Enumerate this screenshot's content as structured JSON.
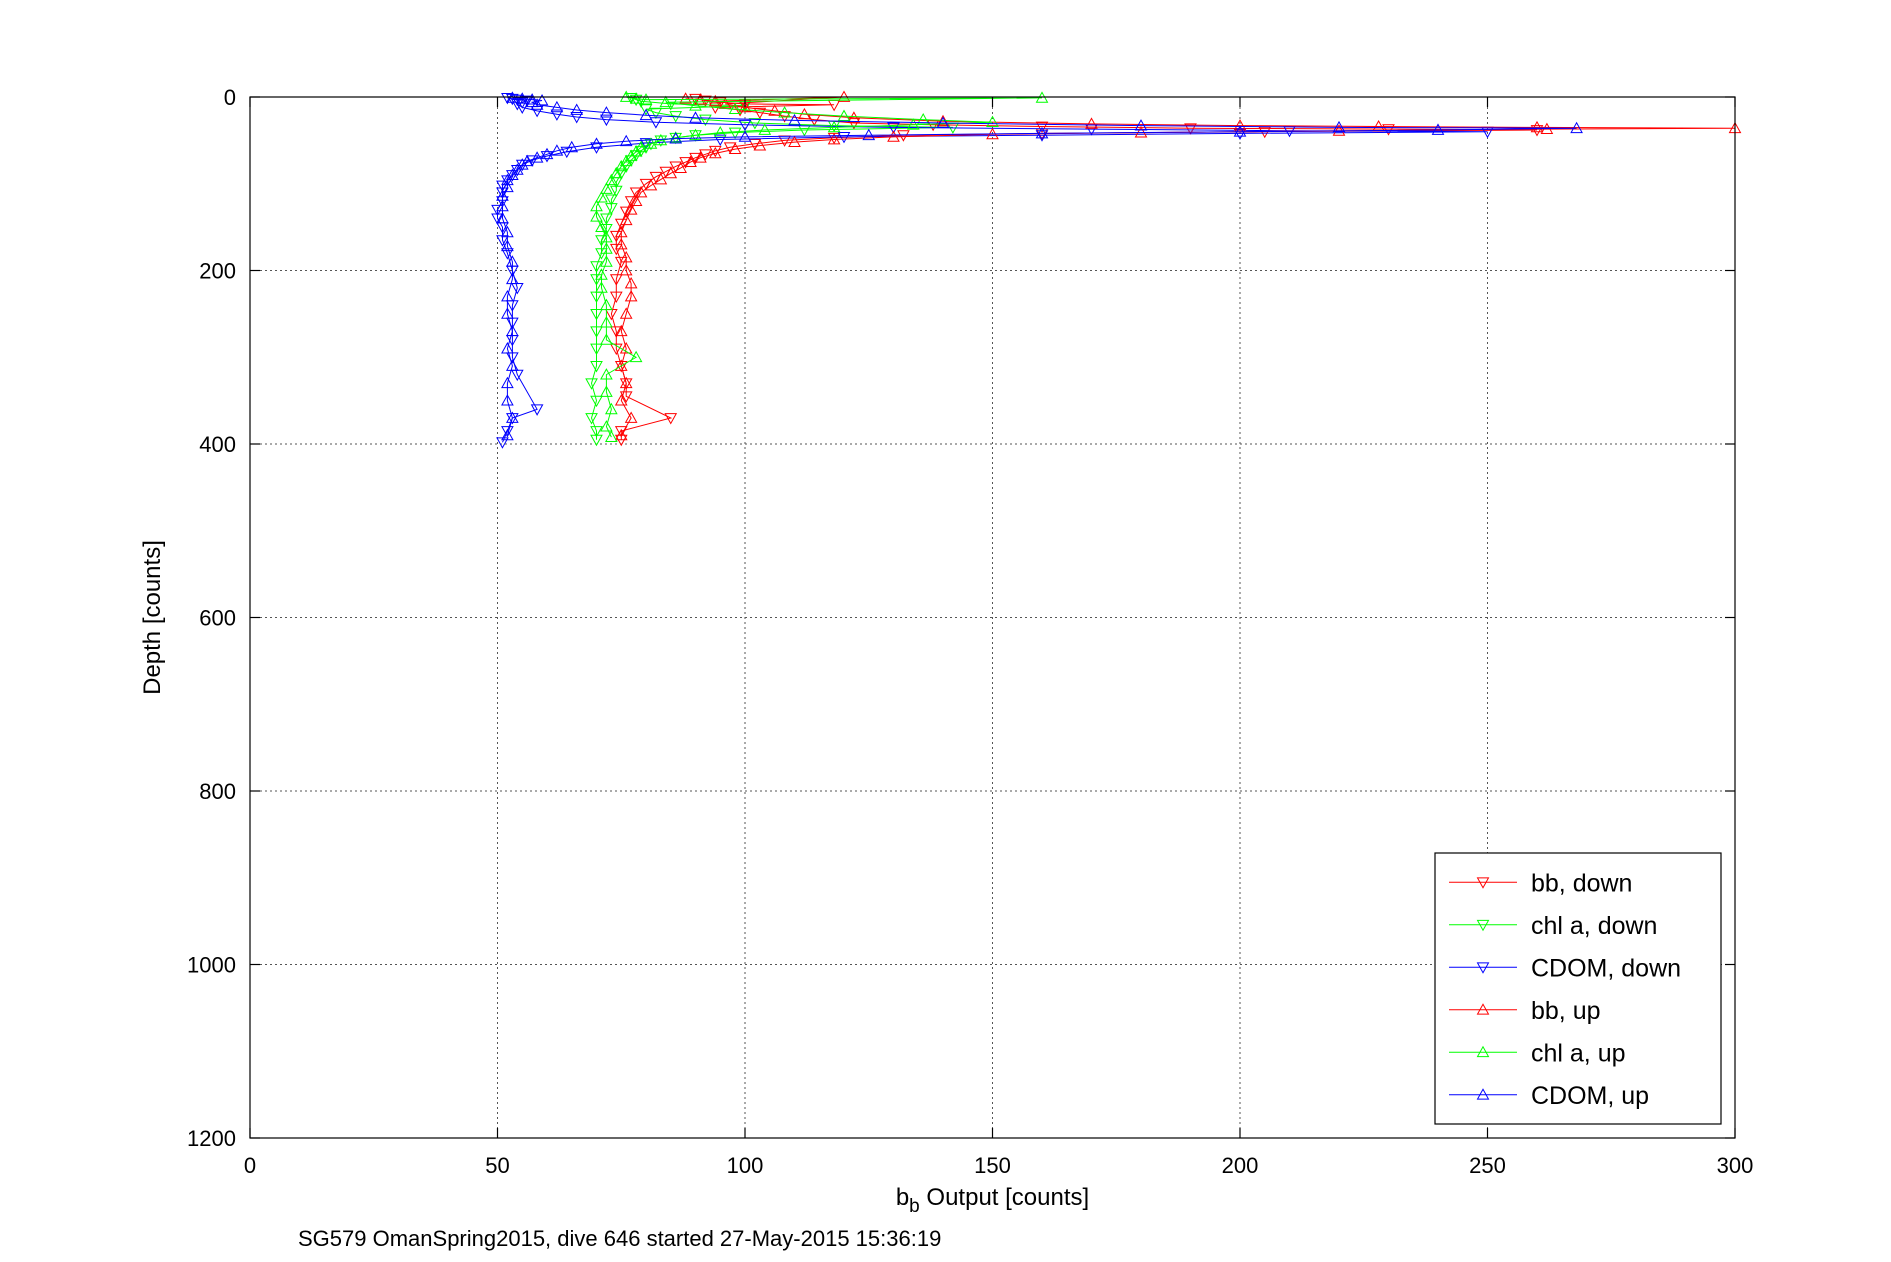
{
  "chart_data": {
    "type": "line",
    "title": "",
    "xlabel_base": "b",
    "xlabel_sub": "b",
    "xlabel_rest": " Output [counts]",
    "ylabel": "Depth [counts]",
    "caption": "SG579 OmanSpring2015, dive 646 started 27-May-2015 15:36:19",
    "xlim": [
      0,
      300
    ],
    "ylim": [
      1200,
      0
    ],
    "y_reversed": true,
    "grid": true,
    "legend_position": "bottom-right",
    "x_ticks": [
      0,
      50,
      100,
      150,
      200,
      250,
      300
    ],
    "y_ticks": [
      0,
      200,
      400,
      600,
      800,
      1000,
      1200
    ],
    "series": [
      {
        "name": "bb, down",
        "color": "#ff0000",
        "marker": "triangle-down",
        "points": [
          [
            90,
            2
          ],
          [
            92,
            4
          ],
          [
            95,
            6
          ],
          [
            100,
            8
          ],
          [
            118,
            9
          ],
          [
            94,
            12
          ],
          [
            99,
            15
          ],
          [
            103,
            18
          ],
          [
            108,
            22
          ],
          [
            114,
            26
          ],
          [
            122,
            30
          ],
          [
            138,
            32
          ],
          [
            160,
            34
          ],
          [
            190,
            36
          ],
          [
            230,
            37
          ],
          [
            260,
            38
          ],
          [
            205,
            40
          ],
          [
            160,
            42
          ],
          [
            132,
            44
          ],
          [
            118,
            47
          ],
          [
            108,
            50
          ],
          [
            102,
            54
          ],
          [
            97,
            58
          ],
          [
            94,
            62
          ],
          [
            92,
            66
          ],
          [
            90,
            70
          ],
          [
            88,
            75
          ],
          [
            86,
            80
          ],
          [
            84,
            86
          ],
          [
            82,
            92
          ],
          [
            80,
            100
          ],
          [
            78,
            110
          ],
          [
            77,
            120
          ],
          [
            76,
            132
          ],
          [
            75,
            146
          ],
          [
            74,
            160
          ],
          [
            74,
            175
          ],
          [
            75,
            190
          ],
          [
            74,
            210
          ],
          [
            74,
            230
          ],
          [
            73,
            250
          ],
          [
            74,
            270
          ],
          [
            74,
            290
          ],
          [
            75,
            310
          ],
          [
            76,
            330
          ],
          [
            76,
            345
          ],
          [
            85,
            370
          ],
          [
            75,
            385
          ],
          [
            75,
            395
          ]
        ]
      },
      {
        "name": "chl a, down",
        "color": "#00ff00",
        "marker": "triangle-down",
        "points": [
          [
            77,
            1
          ],
          [
            78,
            3
          ],
          [
            79,
            5
          ],
          [
            85,
            8
          ],
          [
            100,
            10
          ],
          [
            80,
            14
          ],
          [
            82,
            18
          ],
          [
            86,
            22
          ],
          [
            92,
            26
          ],
          [
            102,
            30
          ],
          [
            118,
            33
          ],
          [
            142,
            35
          ],
          [
            112,
            38
          ],
          [
            98,
            41
          ],
          [
            90,
            44
          ],
          [
            86,
            47
          ],
          [
            83,
            50
          ],
          [
            81,
            54
          ],
          [
            80,
            58
          ],
          [
            79,
            62
          ],
          [
            78,
            67
          ],
          [
            77,
            73
          ],
          [
            76,
            80
          ],
          [
            75,
            88
          ],
          [
            74,
            98
          ],
          [
            74,
            108
          ],
          [
            73,
            118
          ],
          [
            73,
            128
          ],
          [
            72,
            140
          ],
          [
            72,
            152
          ],
          [
            71,
            165
          ],
          [
            71,
            180
          ],
          [
            70,
            195
          ],
          [
            70,
            210
          ],
          [
            70,
            230
          ],
          [
            70,
            250
          ],
          [
            70,
            270
          ],
          [
            70,
            290
          ],
          [
            70,
            310
          ],
          [
            69,
            330
          ],
          [
            70,
            350
          ],
          [
            69,
            370
          ],
          [
            70,
            385
          ],
          [
            70,
            395
          ]
        ]
      },
      {
        "name": "CDOM, down",
        "color": "#0000ff",
        "marker": "triangle-down",
        "points": [
          [
            52,
            1
          ],
          [
            53,
            2
          ],
          [
            54,
            3
          ],
          [
            56,
            4
          ],
          [
            55,
            6
          ],
          [
            54,
            8
          ],
          [
            55,
            12
          ],
          [
            58,
            16
          ],
          [
            62,
            20
          ],
          [
            66,
            23
          ],
          [
            72,
            26
          ],
          [
            82,
            29
          ],
          [
            100,
            32
          ],
          [
            130,
            35
          ],
          [
            170,
            37
          ],
          [
            210,
            39
          ],
          [
            250,
            40
          ],
          [
            200,
            42
          ],
          [
            160,
            44
          ],
          [
            120,
            46
          ],
          [
            95,
            49
          ],
          [
            80,
            53
          ],
          [
            70,
            58
          ],
          [
            64,
            63
          ],
          [
            60,
            68
          ],
          [
            57,
            73
          ],
          [
            55,
            78
          ],
          [
            54,
            84
          ],
          [
            53,
            90
          ],
          [
            52,
            96
          ],
          [
            51,
            102
          ],
          [
            51,
            110
          ],
          [
            51,
            120
          ],
          [
            50,
            130
          ],
          [
            50,
            140
          ],
          [
            51,
            150
          ],
          [
            51,
            165
          ],
          [
            52,
            180
          ],
          [
            53,
            200
          ],
          [
            54,
            220
          ],
          [
            53,
            240
          ],
          [
            53,
            260
          ],
          [
            53,
            280
          ],
          [
            53,
            300
          ],
          [
            54,
            320
          ],
          [
            58,
            360
          ],
          [
            53,
            370
          ],
          [
            52,
            385
          ],
          [
            51,
            398
          ]
        ]
      },
      {
        "name": "bb, up",
        "color": "#ff0000",
        "marker": "triangle-up",
        "points": [
          [
            88,
            2
          ],
          [
            91,
            3
          ],
          [
            94,
            5
          ],
          [
            120,
            0
          ],
          [
            96,
            8
          ],
          [
            100,
            12
          ],
          [
            106,
            16
          ],
          [
            112,
            20
          ],
          [
            122,
            24
          ],
          [
            140,
            28
          ],
          [
            170,
            31
          ],
          [
            200,
            33
          ],
          [
            228,
            34
          ],
          [
            260,
            35
          ],
          [
            300,
            36
          ],
          [
            262,
            37
          ],
          [
            220,
            39
          ],
          [
            180,
            41
          ],
          [
            150,
            43
          ],
          [
            130,
            46
          ],
          [
            118,
            49
          ],
          [
            110,
            52
          ],
          [
            103,
            56
          ],
          [
            98,
            60
          ],
          [
            94,
            65
          ],
          [
            91,
            70
          ],
          [
            89,
            75
          ],
          [
            87,
            82
          ],
          [
            85,
            88
          ],
          [
            83,
            95
          ],
          [
            81,
            102
          ],
          [
            79,
            110
          ],
          [
            78,
            120
          ],
          [
            77,
            130
          ],
          [
            76,
            142
          ],
          [
            75,
            156
          ],
          [
            75,
            170
          ],
          [
            76,
            185
          ],
          [
            76,
            200
          ],
          [
            77,
            215
          ],
          [
            77,
            230
          ],
          [
            76,
            250
          ],
          [
            75,
            270
          ],
          [
            76,
            290
          ],
          [
            75,
            310
          ],
          [
            76,
            330
          ],
          [
            75,
            350
          ],
          [
            77,
            370
          ],
          [
            75,
            390
          ]
        ]
      },
      {
        "name": "chl a, up",
        "color": "#00ff00",
        "marker": "triangle-up",
        "points": [
          [
            76,
            0
          ],
          [
            78,
            2
          ],
          [
            80,
            3
          ],
          [
            160,
            1
          ],
          [
            84,
            6
          ],
          [
            90,
            10
          ],
          [
            98,
            14
          ],
          [
            108,
            18
          ],
          [
            120,
            22
          ],
          [
            136,
            26
          ],
          [
            150,
            29
          ],
          [
            134,
            32
          ],
          [
            118,
            35
          ],
          [
            104,
            38
          ],
          [
            95,
            41
          ],
          [
            90,
            44
          ],
          [
            86,
            47
          ],
          [
            83,
            50
          ],
          [
            81,
            54
          ],
          [
            79,
            58
          ],
          [
            78,
            63
          ],
          [
            77,
            68
          ],
          [
            76,
            74
          ],
          [
            75,
            80
          ],
          [
            74,
            88
          ],
          [
            73,
            96
          ],
          [
            72,
            106
          ],
          [
            71,
            116
          ],
          [
            70,
            126
          ],
          [
            70,
            138
          ],
          [
            71,
            150
          ],
          [
            72,
            162
          ],
          [
            72,
            175
          ],
          [
            72,
            190
          ],
          [
            71,
            205
          ],
          [
            71,
            220
          ],
          [
            72,
            240
          ],
          [
            72,
            260
          ],
          [
            72,
            280
          ],
          [
            78,
            300
          ],
          [
            72,
            320
          ],
          [
            72,
            340
          ],
          [
            73,
            360
          ],
          [
            72,
            380
          ],
          [
            73,
            392
          ]
        ]
      },
      {
        "name": "CDOM, up",
        "color": "#0000ff",
        "marker": "triangle-up",
        "points": [
          [
            53,
            1
          ],
          [
            55,
            2
          ],
          [
            57,
            3
          ],
          [
            59,
            4
          ],
          [
            57,
            6
          ],
          [
            58,
            9
          ],
          [
            62,
            12
          ],
          [
            66,
            15
          ],
          [
            72,
            18
          ],
          [
            80,
            21
          ],
          [
            90,
            24
          ],
          [
            110,
            27
          ],
          [
            140,
            30
          ],
          [
            180,
            33
          ],
          [
            220,
            35
          ],
          [
            268,
            36
          ],
          [
            240,
            38
          ],
          [
            200,
            40
          ],
          [
            160,
            42
          ],
          [
            125,
            44
          ],
          [
            100,
            46
          ],
          [
            86,
            48
          ],
          [
            76,
            51
          ],
          [
            70,
            54
          ],
          [
            65,
            58
          ],
          [
            62,
            62
          ],
          [
            60,
            66
          ],
          [
            58,
            70
          ],
          [
            56,
            74
          ],
          [
            55,
            78
          ],
          [
            54,
            84
          ],
          [
            53,
            90
          ],
          [
            52,
            96
          ],
          [
            52,
            104
          ],
          [
            51,
            114
          ],
          [
            51,
            126
          ],
          [
            51,
            140
          ],
          [
            52,
            156
          ],
          [
            52,
            172
          ],
          [
            53,
            190
          ],
          [
            53,
            210
          ],
          [
            52,
            230
          ],
          [
            52,
            250
          ],
          [
            53,
            270
          ],
          [
            52,
            290
          ],
          [
            53,
            310
          ],
          [
            52,
            330
          ],
          [
            52,
            350
          ],
          [
            53,
            370
          ],
          [
            52,
            390
          ]
        ]
      }
    ]
  }
}
